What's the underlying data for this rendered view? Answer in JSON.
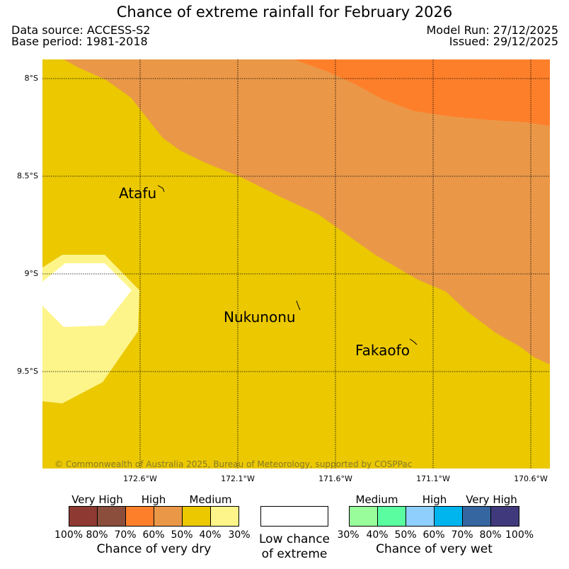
{
  "header": {
    "title": "Chance of extreme rainfall for February 2026",
    "data_source": "Data source: ACCESS-S2",
    "base_period": "Base period: 1981-2018",
    "model_run": "Model Run: 27/12/2025",
    "issued": "Issued: 29/12/2025"
  },
  "map": {
    "places": [
      "Atafu",
      "Nukunonu",
      "Fakaofo"
    ],
    "lat_labels": [
      "8°S",
      "8.5°S",
      "9°S",
      "9.5°S"
    ],
    "lon_labels": [
      "172.6°W",
      "172.1°W",
      "171.6°W",
      "171.1°W",
      "170.6°W"
    ],
    "credit": "© Commonwealth of Australia 2025, Bureau of Meteorology, supported by COSPPac",
    "colors": {
      "medium_dry": "#ebc800",
      "high_dry_60_70": "#ea9848",
      "high_dry_70_80": "#fe7f2a",
      "medium_dry_30_40": "#fdf58a",
      "low": "#ffffff"
    }
  },
  "legend": {
    "dry": {
      "categories": [
        "Very High",
        "High",
        "Medium"
      ],
      "percent_labels": [
        "100%",
        "80%",
        "70%",
        "60%",
        "50%",
        "40%",
        "30%"
      ],
      "colors": [
        "#8e3a32",
        "#8b4e3c",
        "#fe7f2a",
        "#ea9848",
        "#ebc800",
        "#fdf58a"
      ],
      "caption": "Chance of very dry"
    },
    "low": {
      "caption_line1": "Low chance",
      "caption_line2": "of extreme"
    },
    "wet": {
      "categories": [
        "Medium",
        "High",
        "Very High"
      ],
      "percent_labels": [
        "30%",
        "40%",
        "50%",
        "60%",
        "70%",
        "80%",
        "100%"
      ],
      "colors": [
        "#98fd9a",
        "#5afea0",
        "#8ecffe",
        "#00b4ee",
        "#3566a0",
        "#403a7c"
      ],
      "caption": "Chance of very wet"
    }
  }
}
